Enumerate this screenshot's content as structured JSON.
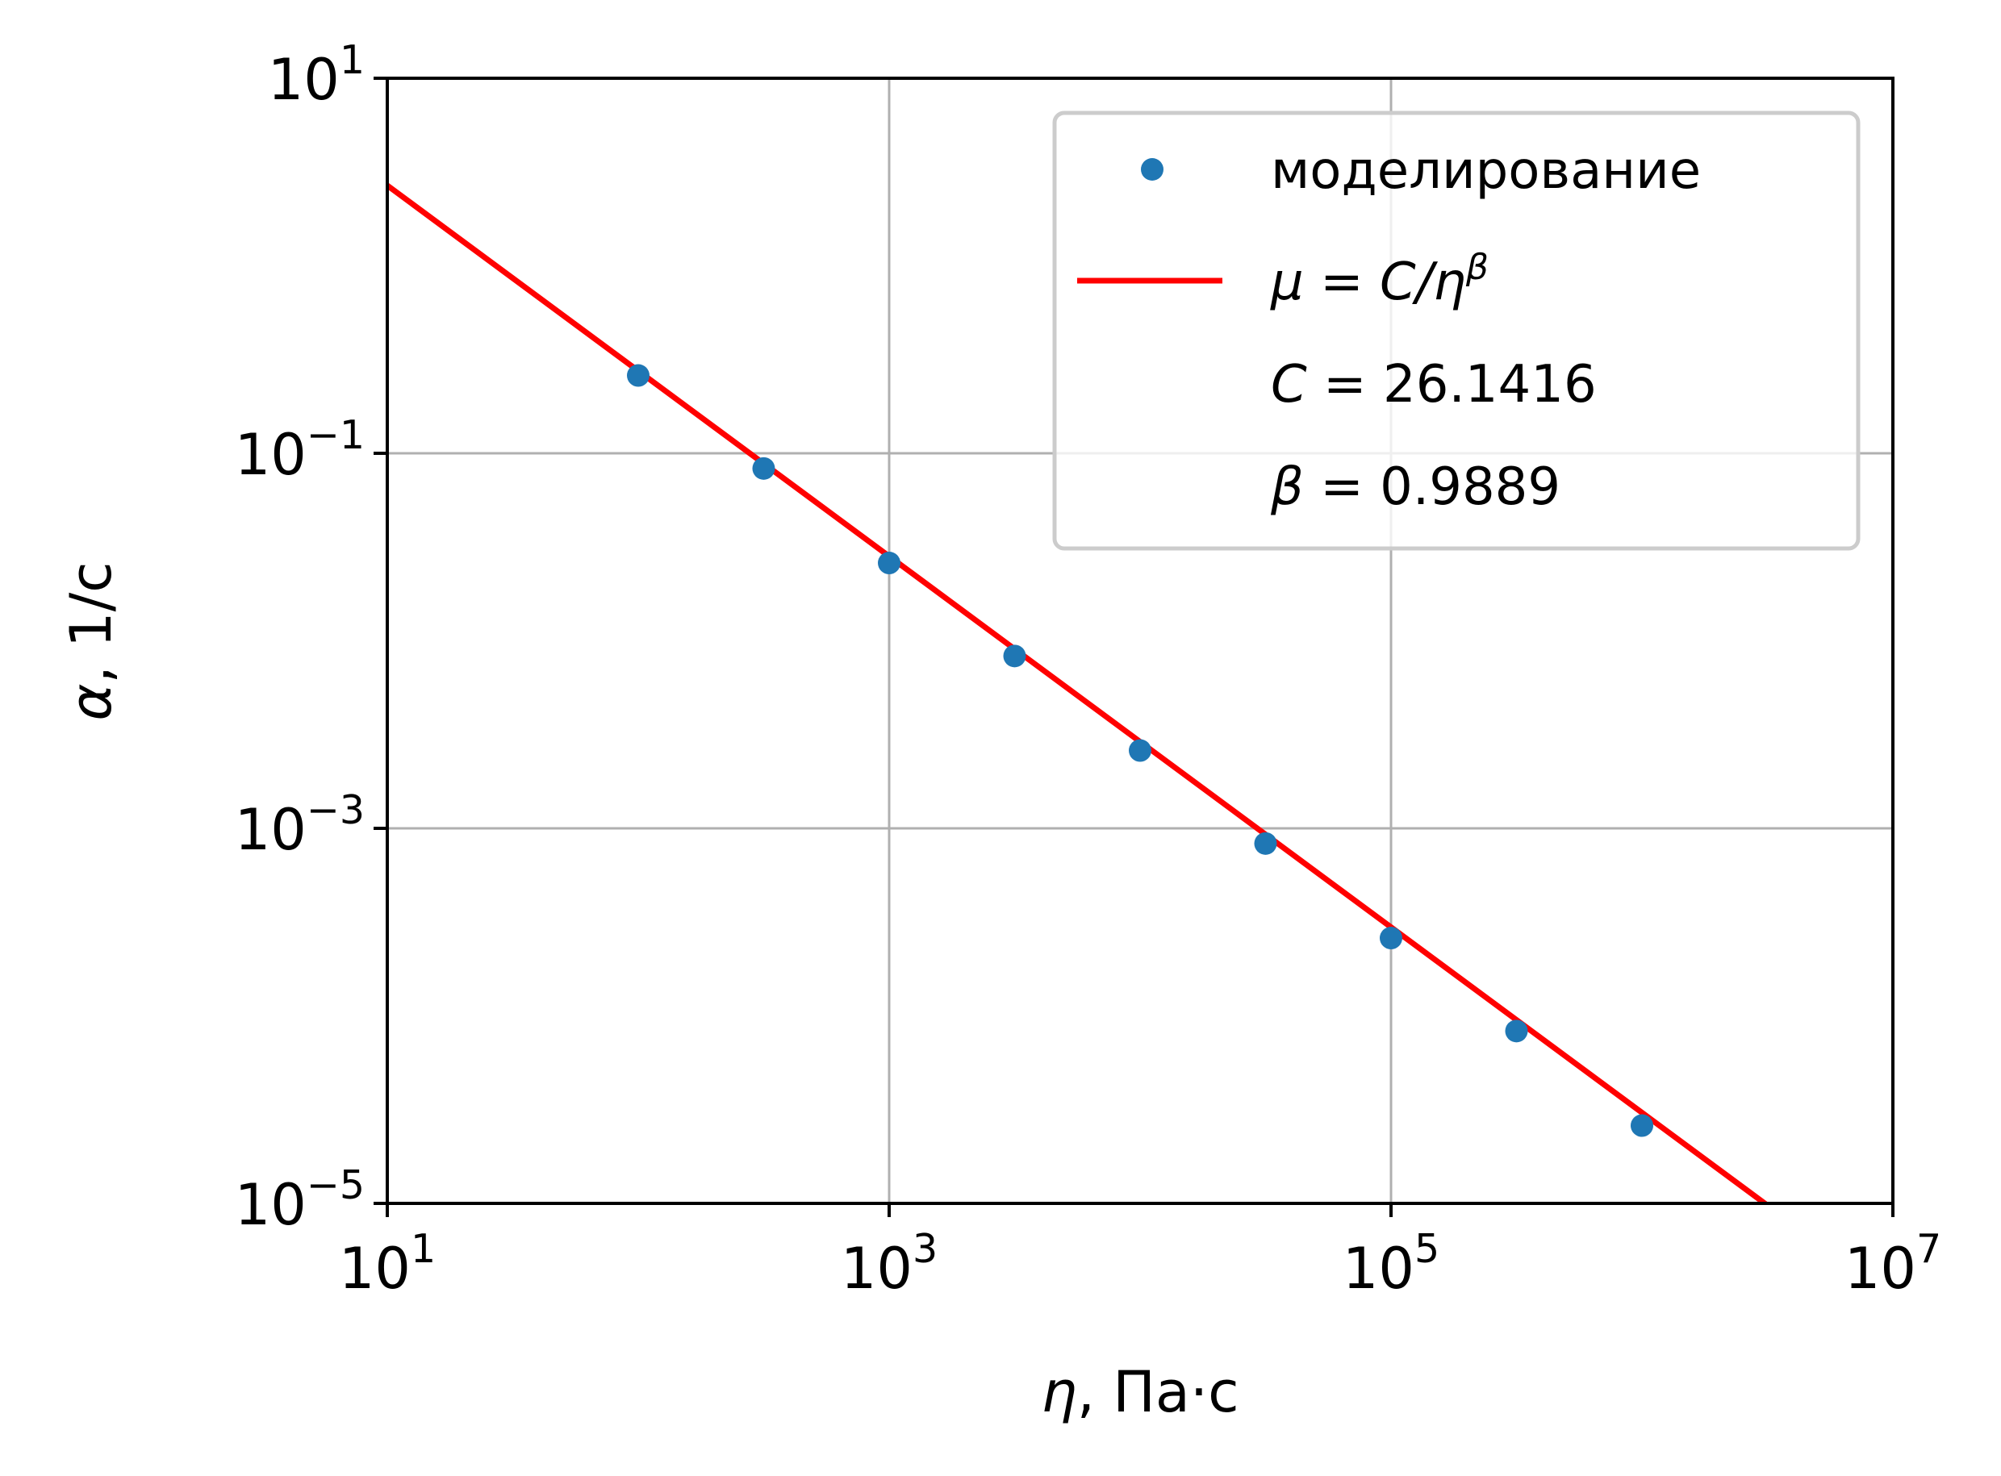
{
  "chart_data": {
    "type": "scatter",
    "xscale": "log",
    "yscale": "log",
    "xlim": [
      10,
      10000000
    ],
    "ylim": [
      1e-05,
      10
    ],
    "grid": true,
    "legend_position": "top-right",
    "xlabel": {
      "symbol": "η",
      "rest": ", Па·с"
    },
    "ylabel": {
      "symbol": "α",
      "rest": ", 1/с"
    },
    "x_ticks": [
      {
        "value": 10,
        "base": "10",
        "exp": "1"
      },
      {
        "value": 1000,
        "base": "10",
        "exp": "3"
      },
      {
        "value": 100000,
        "base": "10",
        "exp": "5"
      },
      {
        "value": 10000000,
        "base": "10",
        "exp": "7"
      }
    ],
    "y_ticks": [
      {
        "value": 10,
        "base": "10",
        "exp": "1"
      },
      {
        "value": 0.1,
        "base": "10",
        "exp": "−1"
      },
      {
        "value": 0.001,
        "base": "10",
        "exp": "−3"
      },
      {
        "value": 1e-05,
        "base": "10",
        "exp": "−5"
      }
    ],
    "series": [
      {
        "name": "моделирование",
        "kind": "points",
        "color": "#1f77b4",
        "x": [
          100,
          316.2,
          1000,
          3162,
          10000,
          31620,
          100000,
          316200,
          1000000
        ],
        "y": [
          0.26,
          0.083,
          0.026,
          0.0083,
          0.0026,
          0.00083,
          0.00026,
          8.3e-05,
          2.6e-05
        ]
      },
      {
        "name_parts": {
          "lhs": "μ",
          "eq": " = ",
          "rhs": "C/η",
          "sup": "β"
        },
        "kind": "line",
        "color": "#ff0000",
        "C": 26.1416,
        "beta": 0.9889,
        "x_range": [
          10,
          3500000
        ]
      }
    ],
    "legend_extra": [
      {
        "symbol": "C",
        "eq": " = ",
        "value": "26.1416"
      },
      {
        "symbol": "β",
        "eq": " = ",
        "value": "0.9889"
      }
    ]
  }
}
